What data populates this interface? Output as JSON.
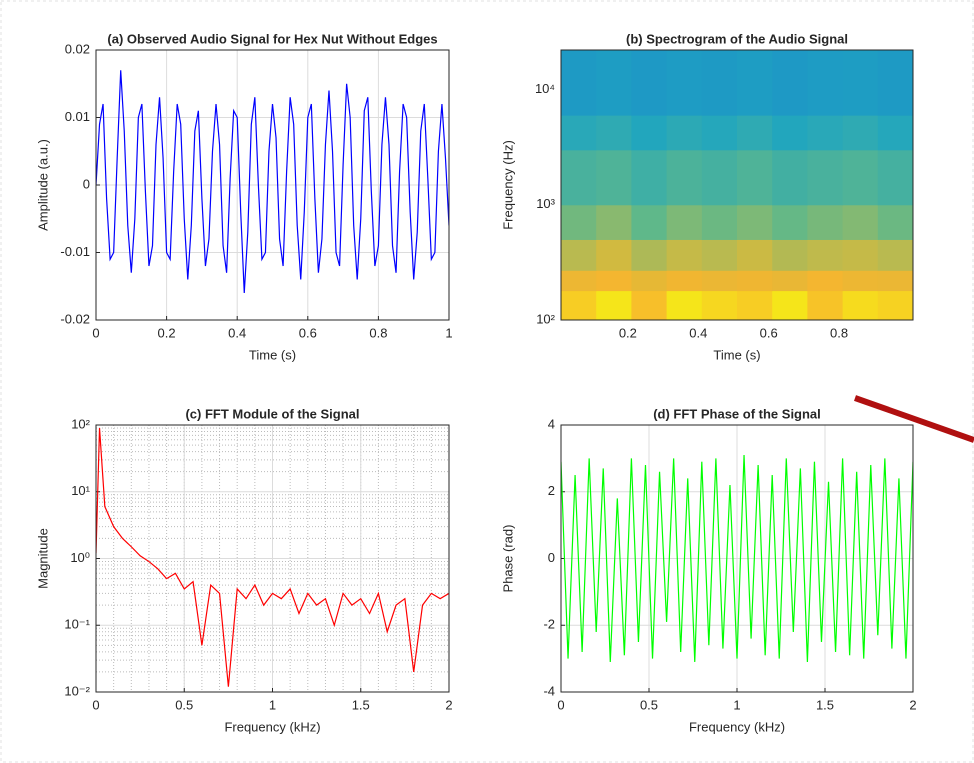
{
  "chart_data": [
    {
      "type": "line",
      "title": "(a) Observed Audio Signal for Hex Nut Without Edges",
      "xlabel": "Time (s)",
      "ylabel": "Amplitude (a.u.)",
      "xlim": [
        0,
        1
      ],
      "xticks": [
        0,
        0.2,
        0.4,
        0.6,
        0.8,
        1
      ],
      "ylim": [
        -0.02,
        0.02
      ],
      "yticks": [
        -0.02,
        -0.01,
        0,
        0.01,
        0.02
      ],
      "grid": true,
      "ylog": false,
      "x": [
        0,
        0.01,
        0.02,
        0.03,
        0.04,
        0.05,
        0.06,
        0.07,
        0.08,
        0.09,
        0.1,
        0.11,
        0.12,
        0.13,
        0.14,
        0.15,
        0.16,
        0.17,
        0.18,
        0.19,
        0.2,
        0.21,
        0.22,
        0.23,
        0.24,
        0.25,
        0.26,
        0.27,
        0.28,
        0.29,
        0.3,
        0.31,
        0.32,
        0.33,
        0.34,
        0.35,
        0.36,
        0.37,
        0.38,
        0.39,
        0.4,
        0.41,
        0.42,
        0.43,
        0.44,
        0.45,
        0.46,
        0.47,
        0.48,
        0.49,
        0.5,
        0.51,
        0.52,
        0.53,
        0.54,
        0.55,
        0.56,
        0.57,
        0.58,
        0.59,
        0.6,
        0.61,
        0.62,
        0.63,
        0.64,
        0.65,
        0.66,
        0.67,
        0.68,
        0.69,
        0.7,
        0.71,
        0.72,
        0.73,
        0.74,
        0.75,
        0.76,
        0.77,
        0.78,
        0.79,
        0.8,
        0.81,
        0.82,
        0.83,
        0.84,
        0.85,
        0.86,
        0.87,
        0.88,
        0.89,
        0.9,
        0.91,
        0.92,
        0.93,
        0.94,
        0.95,
        0.96,
        0.97,
        0.98,
        0.99,
        1
      ],
      "series": [
        {
          "color": "#0000ff",
          "values": [
            0,
            0.009,
            0.012,
            -0.002,
            -0.011,
            -0.01,
            0.004,
            0.017,
            0.008,
            -0.006,
            -0.013,
            -0.005,
            0.01,
            0.012,
            -0.001,
            -0.012,
            -0.009,
            0.006,
            0.013,
            0.004,
            -0.01,
            -0.011,
            0.002,
            0.012,
            0.009,
            -0.005,
            -0.014,
            -0.006,
            0.008,
            0.011,
            -0.002,
            -0.012,
            -0.008,
            0.005,
            0.012,
            0.006,
            -0.009,
            -0.013,
            0.001,
            0.011,
            0.01,
            -0.004,
            -0.016,
            -0.007,
            0.009,
            0.013,
            0,
            -0.011,
            -0.01,
            0.005,
            0.012,
            0.007,
            -0.008,
            -0.012,
            0.002,
            0.013,
            0.009,
            -0.006,
            -0.014,
            -0.004,
            0.01,
            0.012,
            -0.002,
            -0.013,
            -0.008,
            0.006,
            0.014,
            0.005,
            -0.01,
            -0.012,
            0.003,
            0.015,
            0.01,
            -0.006,
            -0.014,
            -0.005,
            0.011,
            0.013,
            -0.001,
            -0.012,
            -0.009,
            0.006,
            0.013,
            0.006,
            -0.009,
            -0.013,
            0.002,
            0.012,
            0.01,
            -0.004,
            -0.014,
            -0.007,
            0.008,
            0.012,
            0.001,
            -0.011,
            -0.01,
            0.005,
            0.012,
            0.004,
            -0.006
          ]
        }
      ]
    },
    {
      "type": "heatmap",
      "title": "(b) Spectrogram of the Audio Signal",
      "xlabel": "Time (s)",
      "ylabel": "Frequency (Hz)",
      "xlim": [
        0.01,
        1.01
      ],
      "xticks": [
        0.2,
        0.4,
        0.6,
        0.8
      ],
      "ylim": [
        100,
        22050
      ],
      "ylog": true,
      "grid": false,
      "yticks": [
        {
          "value": 100,
          "label": "10²"
        },
        {
          "value": 1000,
          "label": "10³"
        },
        {
          "value": 10000,
          "label": "10⁴"
        }
      ],
      "colormap": "parula",
      "xbins": [
        0.01,
        0.11,
        0.21,
        0.31,
        0.41,
        0.51,
        0.61,
        0.71,
        0.81,
        0.91,
        1.01
      ],
      "ybins": [
        100,
        180,
        270,
        500,
        1000,
        3000,
        6000,
        22050
      ],
      "values": [
        [
          0.95,
          1.0,
          0.92,
          1.0,
          0.97,
          0.95,
          1.0,
          0.93,
          0.98,
          0.96
        ],
        [
          0.85,
          0.88,
          0.82,
          0.87,
          0.84,
          0.86,
          0.83,
          0.88,
          0.85,
          0.84
        ],
        [
          0.7,
          0.74,
          0.68,
          0.72,
          0.7,
          0.73,
          0.69,
          0.71,
          0.72,
          0.7
        ],
        [
          0.58,
          0.62,
          0.55,
          0.6,
          0.57,
          0.6,
          0.56,
          0.59,
          0.61,
          0.57
        ],
        [
          0.48,
          0.5,
          0.45,
          0.49,
          0.47,
          0.5,
          0.46,
          0.48,
          0.5,
          0.47
        ],
        [
          0.38,
          0.4,
          0.36,
          0.39,
          0.37,
          0.4,
          0.36,
          0.38,
          0.4,
          0.37
        ],
        [
          0.28,
          0.3,
          0.27,
          0.29,
          0.28,
          0.3,
          0.27,
          0.29,
          0.3,
          0.28
        ]
      ]
    },
    {
      "type": "line",
      "title": "(c) FFT Module of the Signal",
      "xlabel": "Frequency (kHz)",
      "ylabel": "Magnitude",
      "xlim": [
        0,
        2
      ],
      "xticks": [
        0,
        0.5,
        1,
        1.5,
        2
      ],
      "ylim": [
        0.01,
        100
      ],
      "ylog": true,
      "grid": true,
      "minor_grid": true,
      "yticks": [
        {
          "value": 0.01,
          "label": "10⁻²"
        },
        {
          "value": 0.1,
          "label": "10⁻¹"
        },
        {
          "value": 1,
          "label": "10⁰"
        },
        {
          "value": 10,
          "label": "10¹"
        },
        {
          "value": 100,
          "label": "10²"
        }
      ],
      "x": [
        0,
        0.02,
        0.05,
        0.1,
        0.15,
        0.2,
        0.25,
        0.3,
        0.35,
        0.4,
        0.45,
        0.5,
        0.55,
        0.6,
        0.65,
        0.7,
        0.75,
        0.8,
        0.85,
        0.9,
        0.95,
        1,
        1.05,
        1.1,
        1.15,
        1.2,
        1.25,
        1.3,
        1.35,
        1.4,
        1.45,
        1.5,
        1.55,
        1.6,
        1.65,
        1.7,
        1.75,
        1.8,
        1.85,
        1.9,
        1.95,
        2
      ],
      "series": [
        {
          "color": "#ff0000",
          "values": [
            1.2,
            90,
            6,
            3,
            2,
            1.5,
            1.1,
            0.9,
            0.7,
            0.5,
            0.6,
            0.35,
            0.45,
            0.05,
            0.4,
            0.3,
            0.012,
            0.35,
            0.25,
            0.4,
            0.2,
            0.3,
            0.25,
            0.35,
            0.15,
            0.3,
            0.2,
            0.25,
            0.1,
            0.3,
            0.2,
            0.25,
            0.15,
            0.3,
            0.08,
            0.2,
            0.25,
            0.02,
            0.2,
            0.3,
            0.25,
            0.3
          ]
        }
      ]
    },
    {
      "type": "line",
      "title": "(d) FFT Phase of the Signal",
      "xlabel": "Frequency (kHz)",
      "ylabel": "Phase (rad)",
      "xlim": [
        0,
        2
      ],
      "xticks": [
        0,
        0.5,
        1,
        1.5,
        2
      ],
      "ylim": [
        -4,
        4
      ],
      "yticks": [
        -4,
        -2,
        0,
        2,
        4
      ],
      "ylog": false,
      "grid": true,
      "x": [
        0,
        0.04,
        0.08,
        0.12,
        0.16,
        0.2,
        0.24,
        0.28,
        0.32,
        0.36,
        0.4,
        0.44,
        0.48,
        0.52,
        0.56,
        0.6,
        0.64,
        0.68,
        0.72,
        0.76,
        0.8,
        0.84,
        0.88,
        0.92,
        0.96,
        1,
        1.04,
        1.08,
        1.12,
        1.16,
        1.2,
        1.24,
        1.28,
        1.32,
        1.36,
        1.4,
        1.44,
        1.48,
        1.52,
        1.56,
        1.6,
        1.64,
        1.68,
        1.72,
        1.76,
        1.8,
        1.84,
        1.88,
        1.92,
        1.96,
        2
      ],
      "series": [
        {
          "color": "#00ff00",
          "values": [
            2.9,
            -3.0,
            2.5,
            -2.8,
            3.0,
            -2.2,
            2.7,
            -3.1,
            1.8,
            -2.9,
            3.0,
            -2.5,
            2.8,
            -3.0,
            2.6,
            -1.9,
            3.0,
            -2.8,
            2.4,
            -3.1,
            2.9,
            -2.6,
            3.0,
            -2.7,
            2.2,
            -3.0,
            3.1,
            -2.4,
            2.8,
            -2.9,
            2.5,
            -3.0,
            3.0,
            -2.2,
            2.7,
            -3.1,
            2.9,
            -2.5,
            2.3,
            -2.8,
            3.0,
            -2.9,
            2.6,
            -3.0,
            2.8,
            -2.3,
            3.0,
            -2.7,
            2.4,
            -3.0,
            2.9
          ]
        }
      ]
    }
  ]
}
